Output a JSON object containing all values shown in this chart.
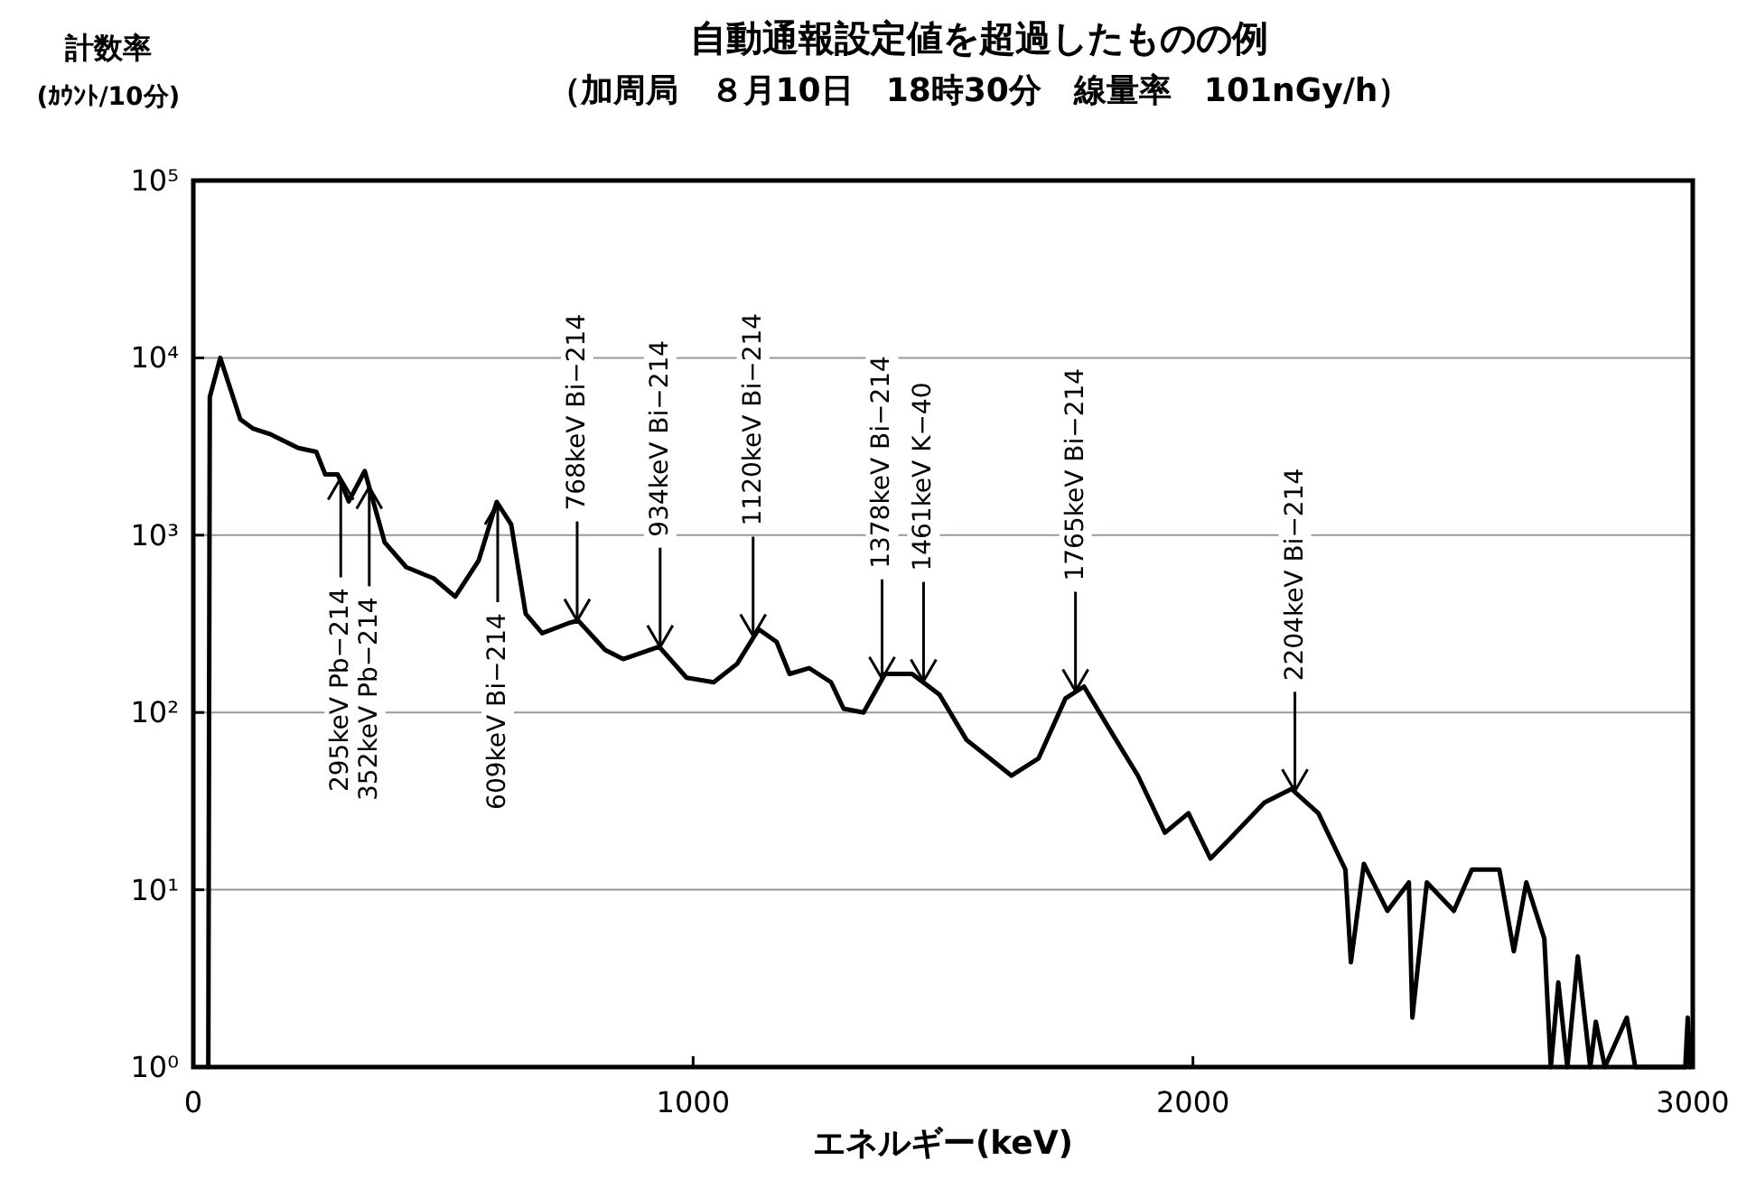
{
  "chart_data": {
    "type": "line",
    "title": "自動通報設定値を超過したものの例",
    "subtitle": "（加周局　８月10日　18時30分　線量率　101nGy/h）",
    "xlabel": "エネルギー(keV)",
    "ylabel": "計数率\n(ｶｳﾝﾄ/10分)",
    "xlim": [
      0,
      3000
    ],
    "xticks": [
      0,
      1000,
      2000,
      3000
    ],
    "ylim": [
      1,
      100000
    ],
    "yticks": [
      {
        "value": 1,
        "label": "10⁰"
      },
      {
        "value": 10,
        "label": "10¹"
      },
      {
        "value": 100,
        "label": "10²"
      },
      {
        "value": 1000,
        "label": "10³"
      },
      {
        "value": 10000,
        "label": "10⁴"
      },
      {
        "value": 100000,
        "label": "10⁵"
      }
    ],
    "log": "y",
    "grid": "y",
    "marker": "none",
    "line_style": "solid",
    "series": [
      {
        "color": "#000000",
        "x": [
          30,
          33,
          54,
          94,
          119,
          155,
          210,
          246,
          264,
          289,
          311,
          343,
          383,
          426,
          481,
          524,
          571,
          607,
          636,
          665,
          698,
          752,
          770,
          824,
          860,
          932,
          987,
          1041,
          1088,
          1131,
          1167,
          1193,
          1232,
          1276,
          1301,
          1341,
          1384,
          1438,
          1493,
          1547,
          1594,
          1637,
          1691,
          1745,
          1782,
          1836,
          1890,
          1944,
          1991,
          2035,
          2071,
          2143,
          2197,
          2251,
          2305,
          2316,
          2342,
          2389,
          2432,
          2439,
          2468,
          2522,
          2558,
          2613,
          2642,
          2667,
          2703,
          2716,
          2731,
          2749,
          2770,
          2795,
          2806,
          2824,
          2868,
          2885,
          2985,
          2990,
          2995
        ],
        "values": [
          1,
          6000,
          10000,
          4500,
          4000,
          3700,
          3100,
          2950,
          2200,
          2200,
          1550,
          2300,
          910,
          660,
          570,
          450,
          720,
          1540,
          1150,
          360,
          280,
          320,
          330,
          225,
          200,
          235,
          157,
          148,
          188,
          295,
          250,
          165,
          178,
          148,
          105,
          100,
          165,
          165,
          126,
          70,
          55,
          44,
          55,
          120,
          140,
          78,
          44,
          21,
          27,
          15,
          19,
          31,
          37,
          27,
          13,
          3.9,
          14,
          7.6,
          11,
          1.9,
          11,
          7.6,
          13,
          13,
          4.5,
          11,
          5.3,
          1,
          3,
          1,
          4.2,
          1,
          1.8,
          1,
          1.9,
          1,
          1,
          1.9,
          1
        ]
      }
    ],
    "annotations": [
      {
        "text": "295keV Pb−214",
        "x": 295,
        "y": 2100
      },
      {
        "text": "352keV Pb−214",
        "x": 352,
        "y": 1870
      },
      {
        "text": "609keV Bi−214",
        "x": 609,
        "y": 1520
      },
      {
        "text": "768keV Bi−214",
        "x": 768,
        "y": 329
      },
      {
        "text": "934keV Bi−214",
        "x": 934,
        "y": 234
      },
      {
        "text": "1120keV Bi−214",
        "x": 1120,
        "y": 270
      },
      {
        "text": "1378keV Bi−214",
        "x": 1378,
        "y": 155
      },
      {
        "text": "1461keV K−40",
        "x": 1461,
        "y": 150
      },
      {
        "text": "1765keV Bi−214",
        "x": 1765,
        "y": 132
      },
      {
        "text": "2204keV Bi−214",
        "x": 2204,
        "y": 36
      }
    ]
  }
}
